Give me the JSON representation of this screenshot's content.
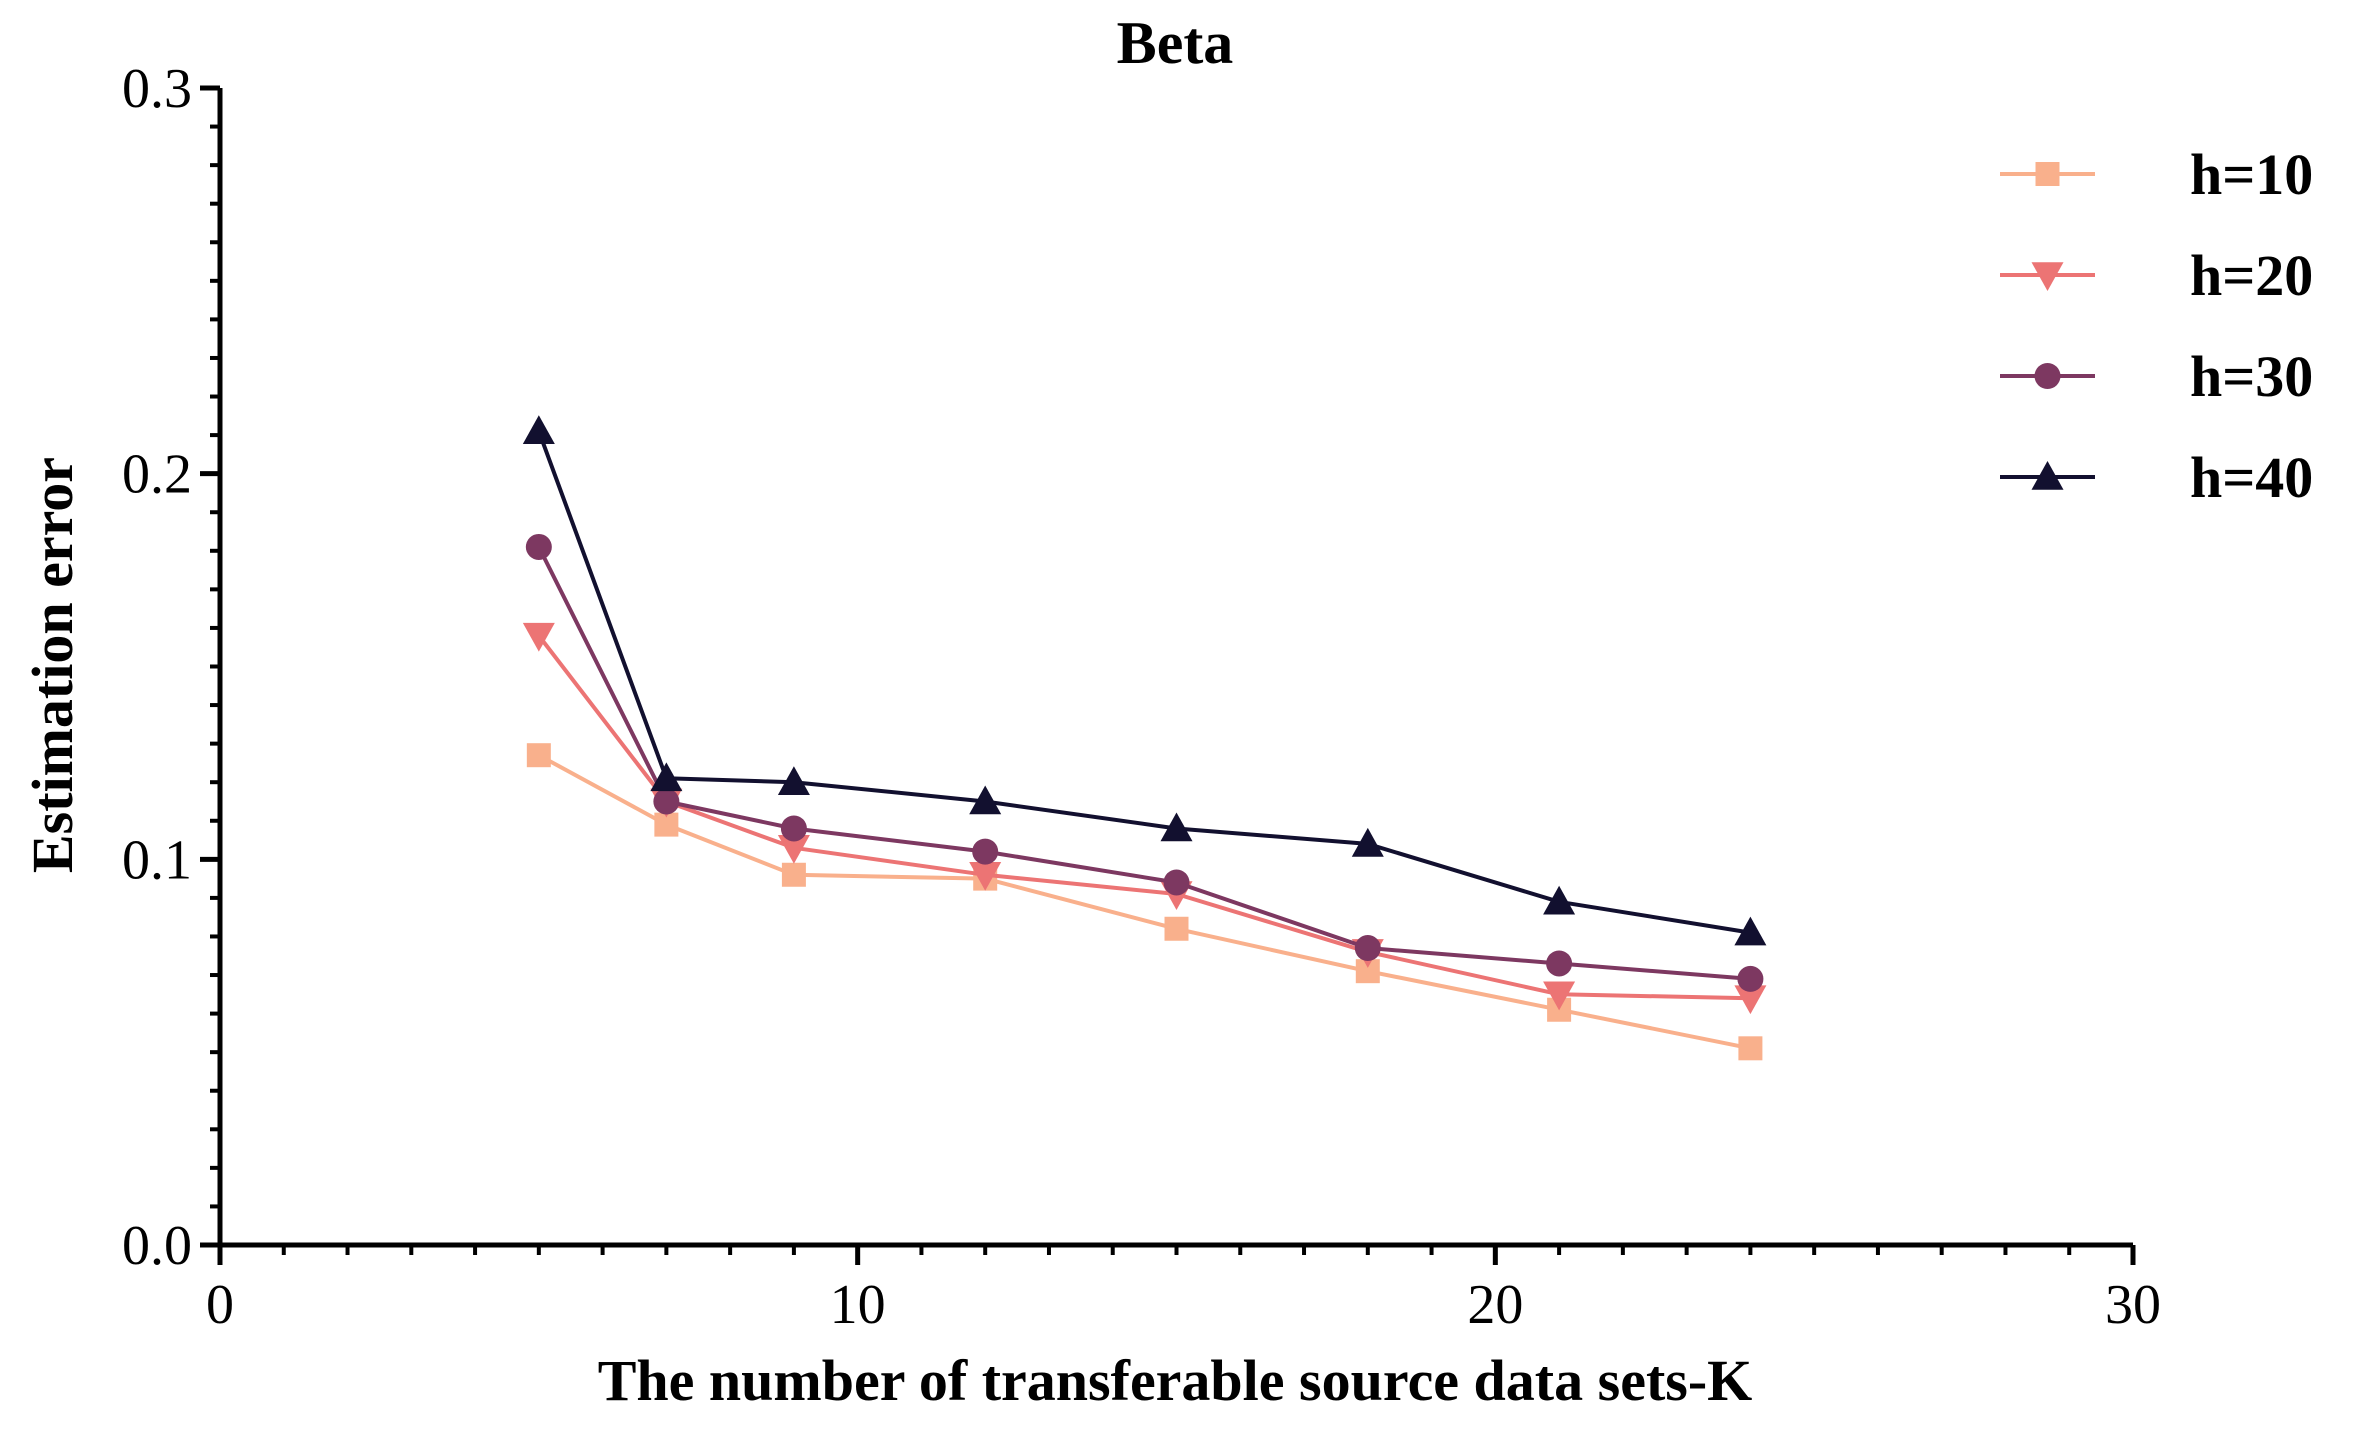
{
  "chart_data": {
    "type": "line",
    "title": "Beta",
    "xlabel": "The number of transferable source data sets-K",
    "ylabel": "Estimation error",
    "xlim": [
      0,
      30
    ],
    "ylim": [
      0,
      0.3
    ],
    "xticks": [
      0,
      10,
      20,
      30
    ],
    "xtick_labels": [
      "0",
      "10",
      "20",
      "30"
    ],
    "yticks": [
      0,
      0.1,
      0.2,
      0.3
    ],
    "ytick_labels": [
      "0.0",
      "0.1",
      "0.2",
      "0.3"
    ],
    "grid": false,
    "legend_position": "top-right",
    "x": [
      5,
      7,
      9,
      12,
      15,
      18,
      21,
      24
    ],
    "series": [
      {
        "name": "h=10",
        "color": "#f9b08c",
        "marker": "square",
        "values": [
          0.127,
          0.109,
          0.096,
          0.095,
          0.082,
          0.071,
          0.061,
          0.051
        ]
      },
      {
        "name": "h=20",
        "color": "#ec7474",
        "marker": "triangle-down",
        "values": [
          0.158,
          0.115,
          0.103,
          0.096,
          0.091,
          0.076,
          0.065,
          0.064
        ]
      },
      {
        "name": "h=30",
        "color": "#7d3861",
        "marker": "circle",
        "values": [
          0.181,
          0.115,
          0.108,
          0.102,
          0.094,
          0.077,
          0.073,
          0.069
        ]
      },
      {
        "name": "h=40",
        "color": "#12102f",
        "marker": "triangle-up",
        "values": [
          0.211,
          0.121,
          0.12,
          0.115,
          0.108,
          0.104,
          0.089,
          0.081
        ]
      }
    ]
  }
}
